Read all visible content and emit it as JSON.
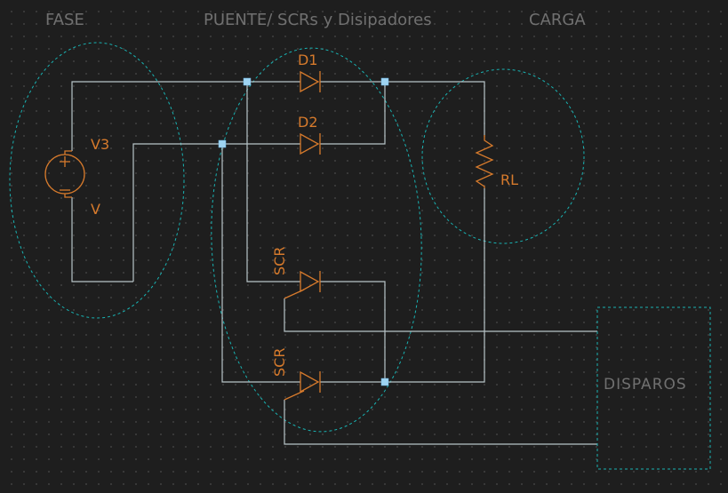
{
  "headings": {
    "fase": "FASE",
    "puente": "PUENTE/ SCRs y Disipadores",
    "carga": "CARGA"
  },
  "components": {
    "source_ref": "V3",
    "source_value": "V",
    "d1": "D1",
    "d2": "D2",
    "load": "RL",
    "scr_top": "SCR",
    "scr_bottom": "SCR"
  },
  "blocks": {
    "disparos": "DISPAROS"
  },
  "colors": {
    "wire": "#b8c4c8",
    "component": "#d67a2c",
    "group_outline": "#19b3b3",
    "junction": "#9fd4f2",
    "heading": "#707070",
    "background": "#1e1e1e"
  }
}
